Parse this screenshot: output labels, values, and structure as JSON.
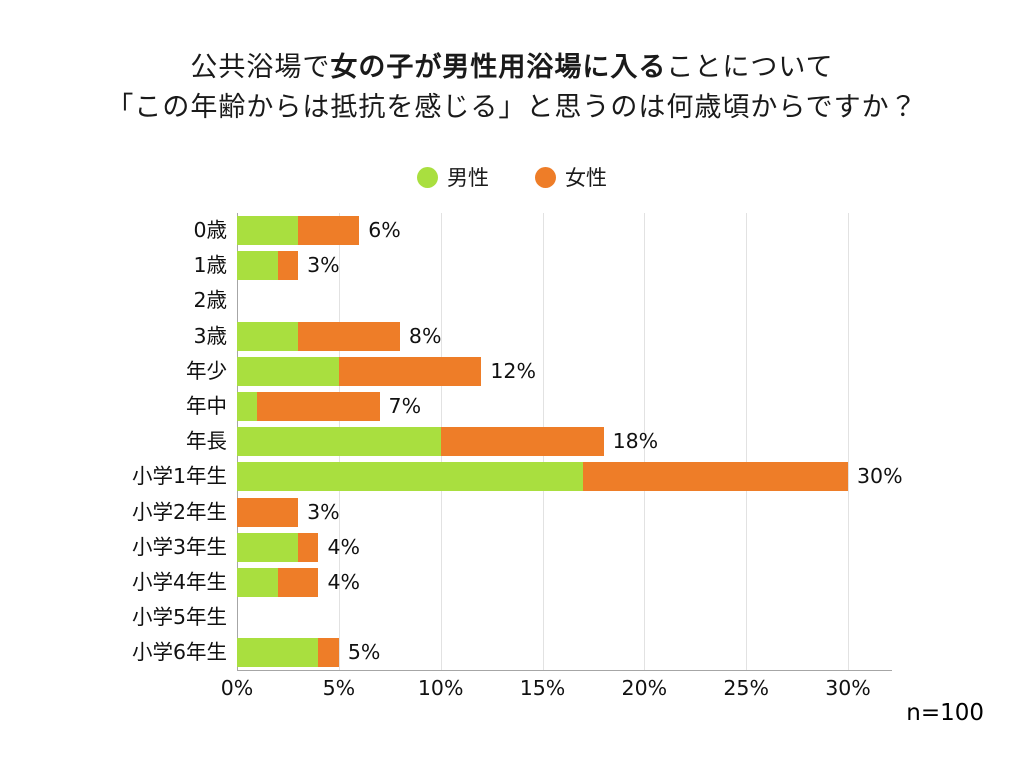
{
  "title": {
    "line1_pre": "公共浴場で",
    "line1_bold": "女の子が男性用浴場に入る",
    "line1_post": "ことについて",
    "line2": "「この年齢からは抵抗を感じる」と思うのは何歳頃からですか？"
  },
  "legend": [
    {
      "label": "男性",
      "color": "#a9df3f"
    },
    {
      "label": "女性",
      "color": "#ee7d28"
    }
  ],
  "note": "n=100",
  "colors": {
    "male": "#a9df3f",
    "female": "#ee7d28",
    "gridline": "#e2e2e2",
    "axis": "#a6a6a6"
  },
  "chart_data": {
    "type": "bar",
    "orientation": "horizontal",
    "stacked": true,
    "title": "公共浴場で女の子が男性用浴場に入ることについて「この年齢からは抵抗を感じる」と思うのは何歳頃からですか？",
    "categories": [
      "0歳",
      "1歳",
      "2歳",
      "3歳",
      "年少",
      "年中",
      "年長",
      "小学1年生",
      "小学2年生",
      "小学3年生",
      "小学4年生",
      "小学5年生",
      "小学6年生"
    ],
    "series": [
      {
        "name": "男性",
        "color": "#a9df3f",
        "values": [
          3,
          2,
          0,
          3,
          5,
          1,
          10,
          17,
          0,
          3,
          2,
          0,
          4
        ]
      },
      {
        "name": "女性",
        "color": "#ee7d28",
        "values": [
          3,
          1,
          0,
          5,
          7,
          6,
          8,
          13,
          3,
          1,
          2,
          0,
          1
        ]
      }
    ],
    "totals": [
      6,
      3,
      0,
      8,
      12,
      7,
      18,
      30,
      3,
      4,
      4,
      0,
      5
    ],
    "total_labels": [
      "6%",
      "3%",
      "",
      "8%",
      "12%",
      "7%",
      "18%",
      "30%",
      "3%",
      "4%",
      "4%",
      "",
      "5%"
    ],
    "x_ticks": [
      "0%",
      "5%",
      "10%",
      "15%",
      "20%",
      "25%",
      "30%"
    ],
    "xlim": [
      0,
      30
    ],
    "xlabel": "",
    "ylabel": "",
    "grid": true,
    "legend_position": "top",
    "sample_note": "n=100"
  }
}
